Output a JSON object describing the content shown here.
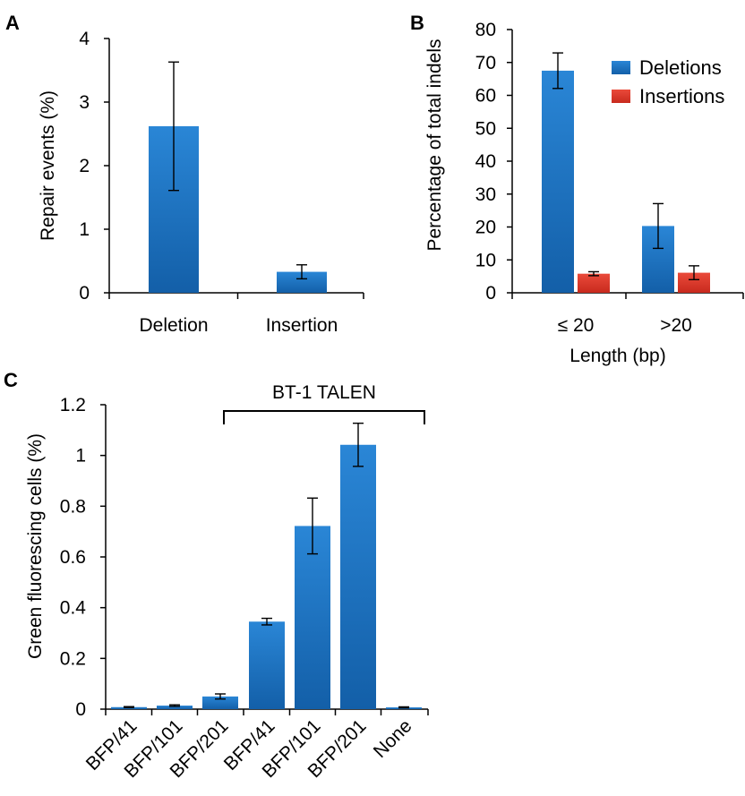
{
  "colors": {
    "deletions": "#1f78c8",
    "insertions": "#e23a2c"
  },
  "chart_data": [
    {
      "panel": "A",
      "type": "bar",
      "categories": [
        "Deletion",
        "Insertion"
      ],
      "series": [
        {
          "values": [
            2.62,
            0.33
          ],
          "errors": [
            1.01,
            0.11
          ]
        }
      ],
      "ylabel": "Repair events (%)",
      "xlabel": "",
      "ylim": [
        0,
        4
      ],
      "yticks": [
        "0",
        "1",
        "2",
        "3",
        "4"
      ],
      "legend": "none"
    },
    {
      "panel": "B",
      "type": "bar",
      "categories": [
        "≤ 20",
        ">20"
      ],
      "series": [
        {
          "name": "Deletions",
          "values": [
            67.5,
            20.3
          ],
          "errors": [
            5.4,
            6.8
          ]
        },
        {
          "name": "Insertions",
          "values": [
            5.8,
            6.1
          ],
          "errors": [
            0.6,
            2.1
          ]
        }
      ],
      "ylabel": "Percentage of total indels",
      "xlabel": "Length (bp)",
      "ylim": [
        0,
        80
      ],
      "yticks": [
        "0",
        "10",
        "20",
        "30",
        "40",
        "50",
        "60",
        "70",
        "80"
      ],
      "legend": "top-right"
    },
    {
      "panel": "C",
      "type": "bar",
      "categories": [
        "BFP/41",
        "BFP/101",
        "BFP/201",
        "BFP/41",
        "BFP/101",
        "BFP/201",
        "None"
      ],
      "series": [
        {
          "values": [
            0.008,
            0.014,
            0.05,
            0.345,
            0.722,
            1.042,
            0.007
          ],
          "errors": [
            0.002,
            0.003,
            0.01,
            0.013,
            0.11,
            0.085,
            0.002
          ]
        }
      ],
      "ylabel": "Green fluorescing cells (%)",
      "xlabel": "",
      "ylim": [
        0,
        1.2
      ],
      "yticks": [
        "0",
        "0.2",
        "0.4",
        "0.6",
        "0.8",
        "1",
        "1.2"
      ],
      "bracket_label": "BT-1 TALEN",
      "legend": "none"
    }
  ]
}
